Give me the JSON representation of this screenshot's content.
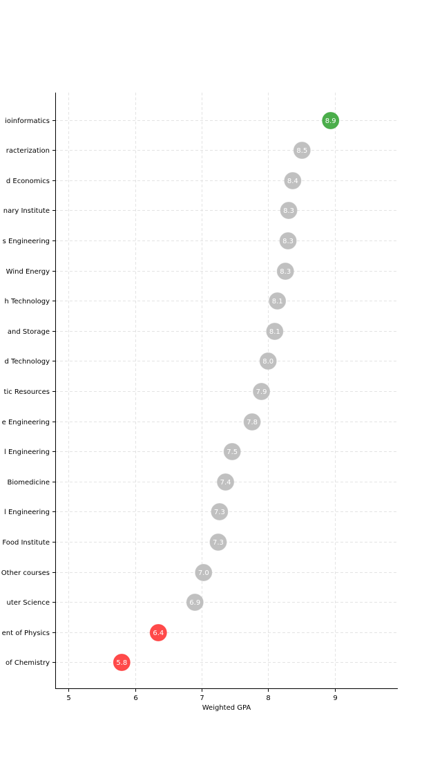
{
  "chart_data": {
    "type": "scatter",
    "title": "",
    "xlabel": "Weighted GPA",
    "ylabel": "",
    "xlim": [
      4.8,
      9.95
    ],
    "xticks": [
      5,
      6,
      7,
      8,
      9
    ],
    "grid": true,
    "categories": [
      "ioinformatics",
      "racterization",
      "d Economics",
      "nary Institute",
      "s Engineering",
      "Wind Energy",
      "h Technology",
      "and Storage",
      "d Technology",
      "tic Resources",
      "e Engineering",
      "l Engineering",
      "Biomedicine",
      "l Engineering",
      "Food Institute",
      "Other courses",
      "uter Science",
      "ent of Physics",
      "of Chemistry"
    ],
    "values": [
      8.94,
      8.51,
      8.37,
      8.31,
      8.3,
      8.26,
      8.14,
      8.1,
      8.0,
      7.9,
      7.76,
      7.46,
      7.36,
      7.27,
      7.25,
      7.03,
      6.9,
      6.35,
      5.8
    ],
    "labels": [
      "8.9",
      "8.5",
      "8.4",
      "8.3",
      "8.3",
      "8.3",
      "8.1",
      "8.1",
      "8.0",
      "7.9",
      "7.8",
      "7.5",
      "7.4",
      "7.3",
      "7.3",
      "7.0",
      "6.9",
      "6.4",
      "5.8"
    ],
    "point_colors": [
      "#2ca02c",
      "#bdbdbd",
      "#bdbdbd",
      "#bdbdbd",
      "#bdbdbd",
      "#bdbdbd",
      "#bdbdbd",
      "#bdbdbd",
      "#bdbdbd",
      "#bdbdbd",
      "#bdbdbd",
      "#bdbdbd",
      "#bdbdbd",
      "#bdbdbd",
      "#bdbdbd",
      "#bdbdbd",
      "#bdbdbd",
      "#ff2a2a",
      "#ff2a2a"
    ],
    "colors": {
      "top": "#2ca02c",
      "bottom": "#ff2a2a",
      "default": "#bdbdbd",
      "grid": "#e3e3e3"
    }
  }
}
